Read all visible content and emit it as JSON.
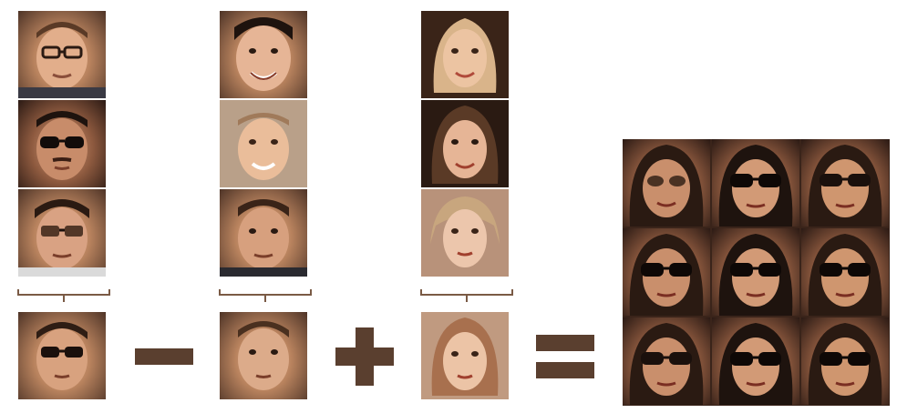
{
  "colors": {
    "operator": "#5a3f2f",
    "bracket": "#7a5a45",
    "grid_bg": "#3a241a"
  },
  "columns": [
    {
      "name": "men-with-glasses",
      "faces": [
        "glasses",
        "sunglasses",
        "glasses"
      ],
      "result": "glasses"
    },
    {
      "name": "men-without-glasses",
      "faces": [
        "plain",
        "plain",
        "plain"
      ],
      "result": "plain"
    },
    {
      "name": "women-without-glasses",
      "faces": [
        "woman",
        "woman",
        "woman"
      ],
      "result": "woman"
    }
  ],
  "operators": [
    "minus",
    "plus",
    "equals"
  ],
  "output_grid": {
    "rows": 3,
    "cols": 3,
    "faces": [
      "woman-sunglasses",
      "woman-sunglasses",
      "woman-sunglasses",
      "woman-sunglasses",
      "woman-sunglasses",
      "woman-sunglasses",
      "woman-sunglasses",
      "woman-sunglasses",
      "woman-sunglasses"
    ]
  }
}
